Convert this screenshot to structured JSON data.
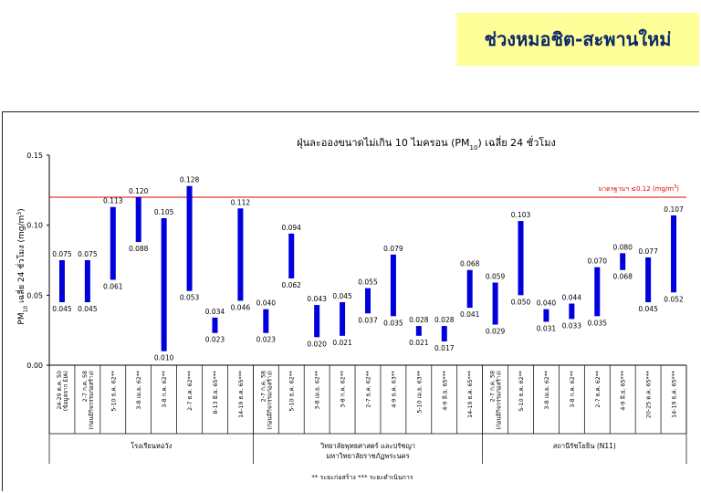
{
  "header": {
    "title": "ช่วงหมอชิต-สะพานใหม่"
  },
  "chart_data": {
    "type": "bar",
    "title": "ฝุ่นละอองขนาดไม่เกิน 10 ไมครอน (PM",
    "title_sub": "10",
    "title_end": ") เฉลี่ย 24 ชั่วโมง",
    "ylabel_prefix": "PM",
    "ylabel_sub": "10",
    "ylabel_main": " เฉลี่ย 24 ชั่วโมง (mg/m",
    "ylabel_sup": "3",
    "ylabel_end": ")",
    "ylim": [
      0,
      0.15
    ],
    "yticks": [
      "0.00",
      "0.05",
      "0.10",
      "0.15"
    ],
    "bar_color": "#0000dd",
    "standard": {
      "value": 0.12,
      "label": "มาตรฐานฯ ≤0.12 (mg/m",
      "label_sup": "3",
      "label_end": ")",
      "color": "#e00000"
    },
    "bars": [
      {
        "category": [
          "24-29 ต.ค. 50",
          "(ข้อมูลจาก EIA)"
        ],
        "min": 0.045,
        "max": 0.075,
        "min_label": "0.045",
        "max_label": "0.075"
      },
      {
        "category": [
          "2-7 ก.ค. 58",
          "(ก่อนมีกิจกรรมก่อสร้าง)"
        ],
        "min": 0.045,
        "max": 0.075,
        "min_label": "0.045",
        "max_label": "0.075"
      },
      {
        "category": [
          "5-10 ธ.ค. 62**"
        ],
        "min": 0.061,
        "max": 0.113,
        "min_label": "0.061",
        "max_label": "0.113"
      },
      {
        "category": [
          "3-8 เม.ย. 62**"
        ],
        "min": 0.088,
        "max": 0.12,
        "min_label": "0.088",
        "max_label": "0.120"
      },
      {
        "category": [
          "3-8 ก.ค. 62**"
        ],
        "min": 0.01,
        "max": 0.105,
        "min_label": "0.010",
        "max_label": "0.105"
      },
      {
        "category": [
          "2-7 ธ.ค. 62***"
        ],
        "min": 0.053,
        "max": 0.128,
        "min_label": "0.053",
        "max_label": "0.128"
      },
      {
        "category": [
          "8-13 มิ.ย. 65***"
        ],
        "min": 0.023,
        "max": 0.034,
        "min_label": "0.023",
        "max_label": "0.034"
      },
      {
        "category": [
          "14-19 ธ.ค. 65***"
        ],
        "min": 0.046,
        "max": 0.112,
        "min_label": "0.046",
        "max_label": "0.112"
      },
      {
        "category": [
          "2-7 ก.ค. 58",
          "(ก่อนมีกิจกรรมก่อสร้าง)"
        ],
        "min": 0.023,
        "max": 0.04,
        "min_label": "0.023",
        "max_label": "0.040"
      },
      {
        "category": [
          "5-10 ธ.ค. 62**"
        ],
        "min": 0.062,
        "max": 0.094,
        "min_label": "0.062",
        "max_label": "0.094"
      },
      {
        "category": [
          "3-8 เม.ย. 62**"
        ],
        "min": 0.02,
        "max": 0.043,
        "min_label": "0.020",
        "max_label": "0.043"
      },
      {
        "category": [
          "3-8 ก.ค. 62**"
        ],
        "min": 0.021,
        "max": 0.045,
        "min_label": "0.021",
        "max_label": "0.045"
      },
      {
        "category": [
          "2-7 ธ.ค. 62**"
        ],
        "min": 0.037,
        "max": 0.055,
        "min_label": "0.037",
        "max_label": "0.055"
      },
      {
        "category": [
          "4-9 ธ.ค. 63**"
        ],
        "min": 0.035,
        "max": 0.079,
        "min_label": "0.035",
        "max_label": "0.079"
      },
      {
        "category": [
          "5-10 เม.ย. 63**"
        ],
        "min": 0.021,
        "max": 0.028,
        "min_label": "0.021",
        "max_label": "0.028"
      },
      {
        "category": [
          "4-9 มิ.ย. 65***"
        ],
        "min": 0.017,
        "max": 0.028,
        "min_label": "0.017",
        "max_label": "0.028"
      },
      {
        "category": [
          "14-19 ธ.ค. 65***"
        ],
        "min": 0.041,
        "max": 0.068,
        "min_label": "0.041",
        "max_label": "0.068"
      },
      {
        "category": [
          "2-7 ก.ค. 58",
          "(ก่อนมีกิจกรรมก่อสร้าง)"
        ],
        "min": 0.029,
        "max": 0.059,
        "min_label": "0.029",
        "max_label": "0.059"
      },
      {
        "category": [
          "5-10 ธ.ค. 62**"
        ],
        "min": 0.05,
        "max": 0.103,
        "min_label": "0.050",
        "max_label": "0.103"
      },
      {
        "category": [
          "3-8 เม.ย. 62**"
        ],
        "min": 0.031,
        "max": 0.04,
        "min_label": "0.031",
        "max_label": "0.040"
      },
      {
        "category": [
          "3-8 ก.ค. 62**"
        ],
        "min": 0.033,
        "max": 0.044,
        "min_label": "0.033",
        "max_label": "0.044"
      },
      {
        "category": [
          "2-7 ธ.ค. 62**"
        ],
        "min": 0.035,
        "max": 0.07,
        "min_label": "0.035",
        "max_label": "0.070"
      },
      {
        "category": [
          "4-9 มิ.ย. 65***"
        ],
        "min": 0.068,
        "max": 0.08,
        "min_label": "0.068",
        "max_label": "0.080"
      },
      {
        "category": [
          "20-25 ต.ค. 65***"
        ],
        "min": 0.045,
        "max": 0.077,
        "min_label": "0.045",
        "max_label": "0.077"
      },
      {
        "category": [
          "14-19 ธ.ค. 65***"
        ],
        "min": 0.052,
        "max": 0.107,
        "min_label": "0.052",
        "max_label": "0.107"
      }
    ],
    "groups": [
      {
        "name": [
          "โรงเรียนหอวัง"
        ],
        "start": 0,
        "end": 7
      },
      {
        "name": [
          "วิทยาลัยพุทธศาสตร์ และปรัชญา",
          "มหาวิทยาลัยราชภัฏพระนคร"
        ],
        "start": 8,
        "end": 16
      },
      {
        "name": [
          "สถานีรัชโยธิน (N11)"
        ],
        "start": 17,
        "end": 24
      }
    ],
    "footnote": "** ระยะก่อสร้าง    *** ระยะดำเนินการ",
    "grid": false,
    "legend": "none"
  }
}
